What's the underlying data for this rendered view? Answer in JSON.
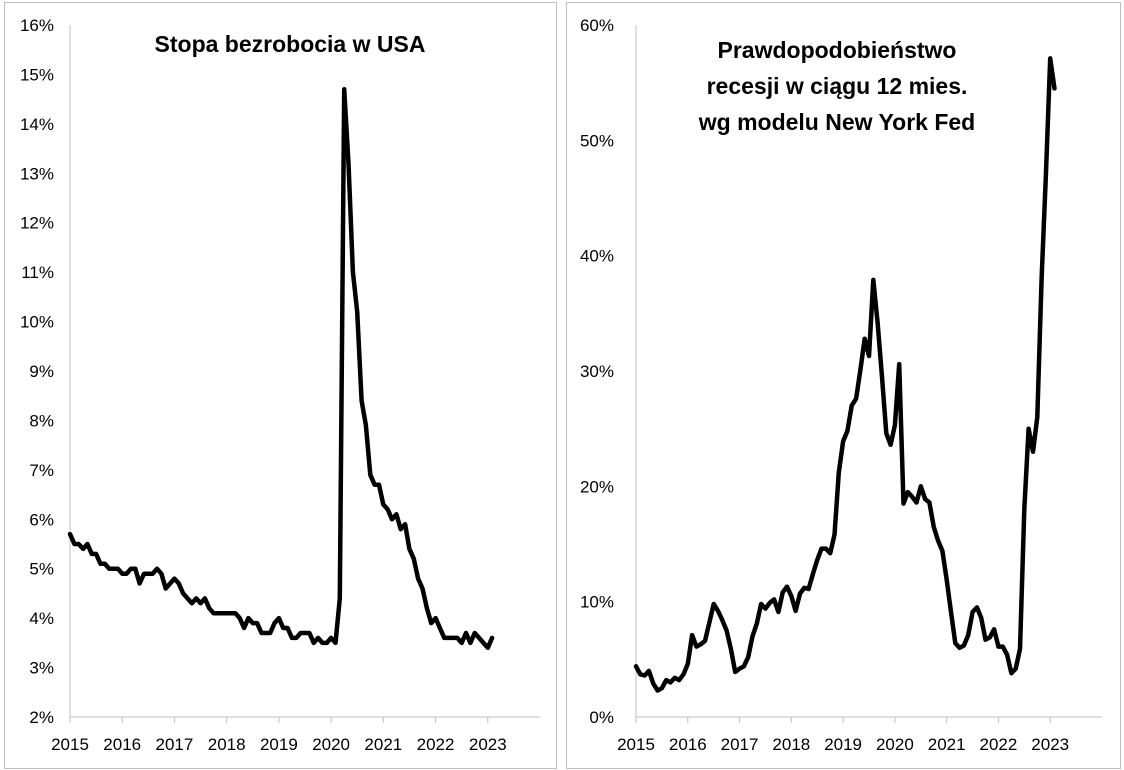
{
  "chart_data": [
    {
      "type": "line",
      "title": "Stopa bezrobocia w USA",
      "title_lines": [
        "Stopa bezrobocia w USA"
      ],
      "xlabel": "",
      "ylabel": "",
      "xlim": [
        2015,
        2024
      ],
      "ylim": [
        2,
        16
      ],
      "x_ticks": [
        2015,
        2016,
        2017,
        2018,
        2019,
        2020,
        2021,
        2022,
        2023
      ],
      "y_ticks": [
        2,
        3,
        4,
        5,
        6,
        7,
        8,
        9,
        10,
        11,
        12,
        13,
        14,
        15,
        16
      ],
      "y_tick_labels": [
        "2%",
        "3%",
        "4%",
        "5%",
        "6%",
        "7%",
        "8%",
        "9%",
        "10%",
        "11%",
        "12%",
        "13%",
        "14%",
        "15%",
        "16%"
      ],
      "x_tick_labels": [
        "2015",
        "2016",
        "2017",
        "2018",
        "2019",
        "2020",
        "2021",
        "2022",
        "2023"
      ],
      "grid": false,
      "series": [
        {
          "name": "Stopa bezrobocia w USA",
          "color": "#000000",
          "start": [
            2015,
            1
          ],
          "values": [
            5.7,
            5.5,
            5.5,
            5.4,
            5.5,
            5.3,
            5.3,
            5.1,
            5.1,
            5.0,
            5.0,
            5.0,
            4.9,
            4.9,
            5.0,
            5.0,
            4.7,
            4.9,
            4.9,
            4.9,
            5.0,
            4.9,
            4.6,
            4.7,
            4.8,
            4.7,
            4.5,
            4.4,
            4.3,
            4.4,
            4.3,
            4.4,
            4.2,
            4.1,
            4.1,
            4.1,
            4.1,
            4.1,
            4.1,
            4.0,
            3.8,
            4.0,
            3.9,
            3.9,
            3.7,
            3.7,
            3.7,
            3.9,
            4.0,
            3.8,
            3.8,
            3.6,
            3.6,
            3.7,
            3.7,
            3.7,
            3.5,
            3.6,
            3.5,
            3.5,
            3.6,
            3.5,
            4.4,
            14.7,
            13.2,
            11.0,
            10.2,
            8.4,
            7.9,
            6.9,
            6.7,
            6.7,
            6.3,
            6.2,
            6.0,
            6.1,
            5.8,
            5.9,
            5.4,
            5.2,
            4.8,
            4.6,
            4.2,
            3.9,
            4.0,
            3.8,
            3.6,
            3.6,
            3.6,
            3.6,
            3.5,
            3.7,
            3.5,
            3.7,
            3.6,
            3.5,
            3.4,
            3.6
          ]
        }
      ]
    },
    {
      "type": "line",
      "title": "Prawdopodobieństwo recesji w ciągu 12 mies. wg modelu New York Fed",
      "title_lines": [
        "Prawdopodobieństwo",
        "recesji w ciągu 12 mies.",
        "wg modelu New York Fed"
      ],
      "xlabel": "",
      "ylabel": "",
      "xlim": [
        2015,
        2024
      ],
      "ylim": [
        0,
        60
      ],
      "x_ticks": [
        2015,
        2016,
        2017,
        2018,
        2019,
        2020,
        2021,
        2022,
        2023
      ],
      "y_ticks": [
        0,
        10,
        20,
        30,
        40,
        50,
        60
      ],
      "y_tick_labels": [
        "0%",
        "10%",
        "20%",
        "30%",
        "40%",
        "50%",
        "60%"
      ],
      "x_tick_labels": [
        "2015",
        "2016",
        "2017",
        "2018",
        "2019",
        "2020",
        "2021",
        "2022",
        "2023"
      ],
      "grid": false,
      "series": [
        {
          "name": "Prawdopodobieństwo recesji",
          "color": "#000000",
          "start": [
            2015,
            1
          ],
          "values": [
            4.4,
            3.7,
            3.6,
            4.0,
            2.9,
            2.3,
            2.5,
            3.2,
            3.0,
            3.4,
            3.2,
            3.7,
            4.6,
            7.1,
            6.1,
            6.3,
            6.6,
            8.2,
            9.8,
            9.2,
            8.4,
            7.5,
            5.9,
            3.9,
            4.2,
            4.4,
            5.2,
            7.0,
            8.1,
            9.8,
            9.4,
            9.9,
            10.2,
            9.1,
            10.8,
            11.3,
            10.5,
            9.2,
            10.7,
            11.2,
            11.1,
            12.4,
            13.6,
            14.6,
            14.6,
            14.2,
            15.8,
            21.2,
            23.9,
            24.8,
            27.0,
            27.6,
            30.1,
            32.8,
            31.3,
            37.9,
            34.2,
            29.6,
            24.6,
            23.6,
            25.3,
            30.6,
            18.5,
            19.5,
            19.1,
            18.6,
            20.0,
            18.9,
            18.6,
            16.5,
            15.3,
            14.4,
            11.9,
            9.1,
            6.4,
            6.0,
            6.2,
            7.1,
            9.1,
            9.5,
            8.6,
            6.7,
            6.9,
            7.6,
            6.1,
            6.1,
            5.4,
            3.8,
            4.2,
            5.9,
            18.0,
            25.0,
            23.0,
            26.0,
            38.0,
            47.0,
            57.1,
            54.5
          ]
        }
      ]
    }
  ]
}
